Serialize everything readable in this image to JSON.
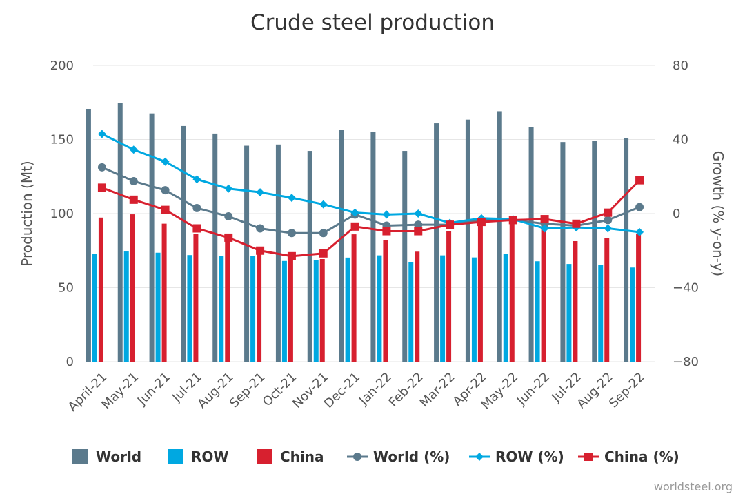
{
  "chart_data": {
    "type": "bar",
    "title": "Crude steel production",
    "categories": [
      "April-21",
      "May-21",
      "Jun-21",
      "Jul-21",
      "Aug-21",
      "Sep-21",
      "Oct-21",
      "Nov-21",
      "Dec-21",
      "Jan-22",
      "Feb-22",
      "Mar-22",
      "Apr-22",
      "May-22",
      "Jun-22",
      "Jul-22",
      "Aug-22",
      "Sep-22"
    ],
    "y_left": {
      "label": "Production (Mt)",
      "range": [
        0,
        200
      ],
      "ticks": [
        "0",
        "50",
        "100",
        "150",
        "200"
      ]
    },
    "y_right": {
      "label": "Growth (% y-on-y)",
      "range": [
        -80,
        80
      ],
      "ticks": [
        "−80",
        "−40",
        "0",
        "40",
        "80"
      ]
    },
    "grid": true,
    "legend_position": "bottom",
    "series": [
      {
        "name": "World",
        "type": "bar",
        "axis": "left",
        "color": "#5b7a8c",
        "values": [
          170.7,
          174.8,
          167.6,
          159.1,
          154.0,
          145.8,
          146.6,
          142.3,
          156.6,
          155.0,
          142.3,
          160.9,
          163.4,
          169.1,
          158.2,
          148.3,
          149.2,
          151.0
        ]
      },
      {
        "name": "ROW",
        "type": "bar",
        "axis": "left",
        "color": "#00a8e1",
        "values": [
          72.9,
          74.4,
          73.6,
          72.0,
          71.2,
          71.6,
          68.0,
          68.8,
          70.3,
          71.8,
          67.0,
          71.8,
          70.4,
          72.9,
          67.8,
          66.0,
          65.2,
          63.6
        ]
      },
      {
        "name": "China",
        "type": "bar",
        "axis": "left",
        "color": "#d7202f",
        "values": [
          97.3,
          99.5,
          93.2,
          86.5,
          83.2,
          73.8,
          71.6,
          69.3,
          86.0,
          81.9,
          74.3,
          88.3,
          92.8,
          96.6,
          90.7,
          81.4,
          83.4,
          86.5
        ]
      },
      {
        "name": "World (%)",
        "type": "line",
        "axis": "right",
        "marker": "circle",
        "color": "#5b7a8c",
        "values": [
          25.0,
          17.5,
          12.6,
          3.0,
          -1.5,
          -8.0,
          -10.5,
          -10.5,
          -0.5,
          -6.5,
          -6.0,
          -6.0,
          -3.5,
          -3.5,
          -5.5,
          -6.5,
          -3.5,
          3.5
        ]
      },
      {
        "name": "ROW (%)",
        "type": "line",
        "axis": "right",
        "marker": "diamond",
        "color": "#00a8e1",
        "values": [
          43.0,
          34.5,
          28.0,
          18.5,
          13.5,
          11.5,
          8.5,
          5.0,
          0.5,
          -0.5,
          0.0,
          -5.0,
          -2.5,
          -3.0,
          -8.0,
          -7.5,
          -8.0,
          -10.0
        ]
      },
      {
        "name": "China (%)",
        "type": "line",
        "axis": "right",
        "marker": "square",
        "color": "#d7202f",
        "values": [
          14.0,
          7.5,
          2.0,
          -8.0,
          -13.0,
          -20.0,
          -23.0,
          -21.5,
          -7.0,
          -9.5,
          -9.5,
          -6.0,
          -4.5,
          -3.5,
          -3.0,
          -5.5,
          0.5,
          18.0
        ]
      }
    ],
    "credit": "worldsteel.org"
  }
}
